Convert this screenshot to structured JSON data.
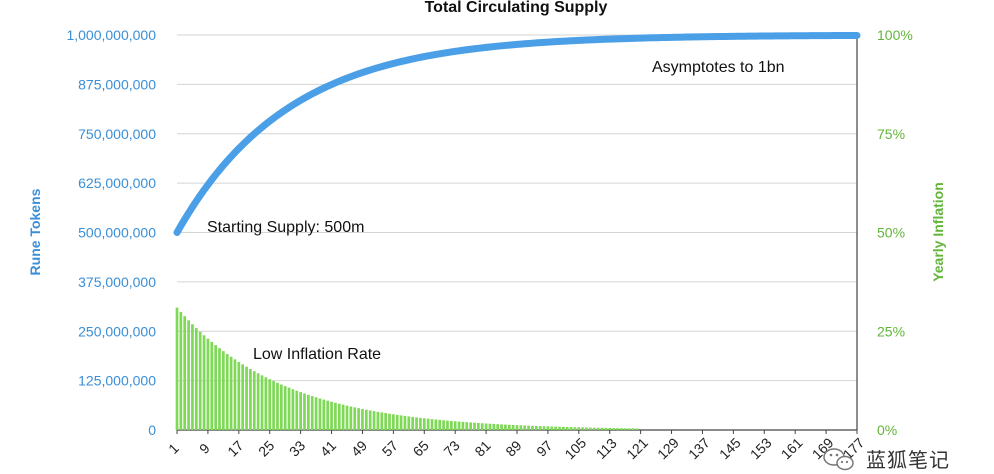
{
  "chart_data": {
    "type": "bar+line",
    "title": "Total Circulating Supply",
    "ylabel_left": "Rune Tokens",
    "ylabel_right": "Yearly Inflation",
    "y_left_ticks": [
      "0",
      "125,000,000",
      "250,000,000",
      "375,000,000",
      "500,000,000",
      "625,000,000",
      "750,000,000",
      "875,000,000",
      "1,000,000,000"
    ],
    "y_left_range": [
      0,
      1000000000
    ],
    "y_right_ticks": [
      "0%",
      "25%",
      "50%",
      "75%",
      "100%"
    ],
    "y_right_range": [
      0,
      100
    ],
    "x_ticks": [
      "1",
      "9",
      "17",
      "25",
      "33",
      "41",
      "49",
      "57",
      "65",
      "73",
      "81",
      "89",
      "97",
      "105",
      "113",
      "121",
      "129",
      "137",
      "145",
      "153",
      "161",
      "169",
      "177"
    ],
    "x_range": [
      1,
      177
    ],
    "grid": true,
    "series": [
      {
        "name": "Total Circulating Supply",
        "kind": "line",
        "axis": "left",
        "color": "#4a9fe6",
        "start_value": 500000000,
        "asymptote": 1000000000,
        "decay_per_period": 0.966,
        "values_at_ticks": [
          500000000,
          620000000,
          702000000,
          760000000,
          802000000,
          838000000,
          862000000,
          884000000,
          903000000,
          918000000,
          932000000,
          945000000,
          955000000,
          963000000,
          970000000,
          976000000,
          981000000,
          985000000,
          988000000,
          991000000,
          993000000,
          995000000,
          996000000
        ]
      },
      {
        "name": "Yearly Inflation",
        "kind": "bar",
        "axis": "right",
        "color": "#7ed957",
        "start_value": 31,
        "decay_per_period": 0.964,
        "end_period": 120,
        "values_at_ticks": [
          31,
          23,
          17,
          12.5,
          9.5,
          7,
          5.3,
          4,
          3,
          2.3,
          1.7,
          1.3,
          1,
          0.75,
          0.55,
          0.4
        ]
      }
    ],
    "annotations": [
      {
        "text": "Asymptotes to 1bn"
      },
      {
        "text": "Starting Supply: 500m"
      },
      {
        "text": "Low Inflation Rate"
      }
    ]
  },
  "watermark": {
    "text": "蓝狐笔记",
    "icon": "wechat-icon"
  },
  "colors": {
    "line": "#4a9fe6",
    "bars": "#7ed957",
    "left_axis": "#3a8fd6",
    "right_axis": "#63b53a",
    "grid": "#d4d4d4"
  }
}
